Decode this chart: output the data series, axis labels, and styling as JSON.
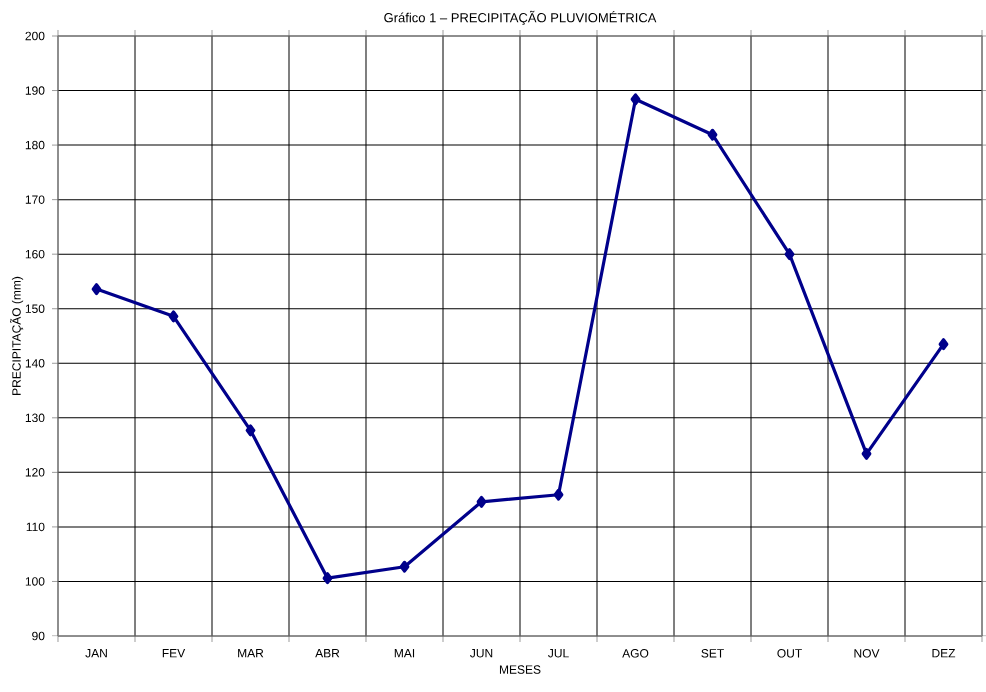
{
  "chart_data": {
    "type": "line",
    "title": "Gráfico 1 – PRECIPITAÇÃO PLUVIOMÉTRICA",
    "xlabel": "MESES",
    "ylabel": "PRECIPITAÇÃO (mm)",
    "categories": [
      "JAN",
      "FEV",
      "MAR",
      "ABR",
      "MAI",
      "JUN",
      "JUL",
      "AGO",
      "SET",
      "OUT",
      "NOV",
      "DEZ"
    ],
    "series": [
      {
        "color": "#00008b",
        "values": [
          153.6,
          148.6,
          127.7,
          100.6,
          102.7,
          114.6,
          115.9,
          188.4,
          181.9,
          160,
          123.4,
          143.5
        ]
      }
    ],
    "ylim": [
      90,
      200
    ],
    "yticks": [
      90,
      100,
      110,
      120,
      130,
      140,
      150,
      160,
      170,
      180,
      190,
      200
    ],
    "grid": true,
    "marker": "diamond",
    "line_style": "solid"
  }
}
